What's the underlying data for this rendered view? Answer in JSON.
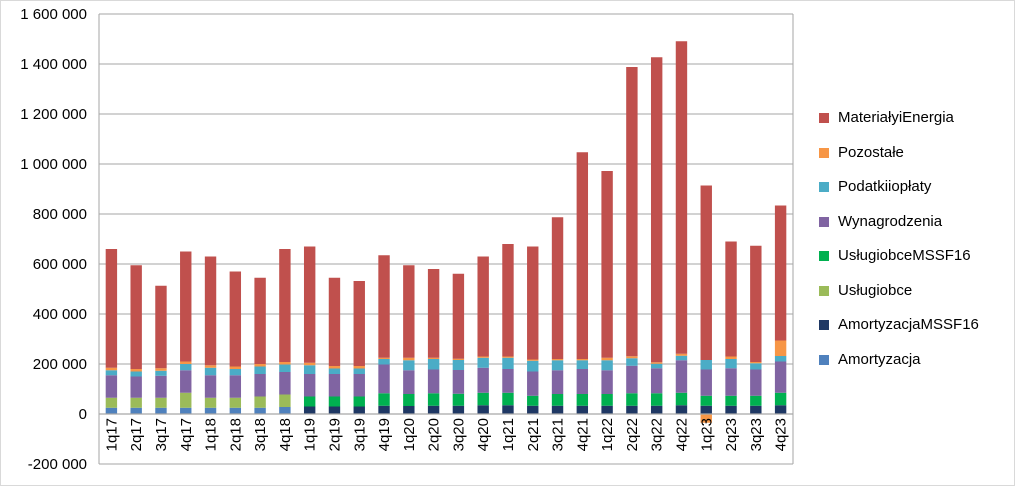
{
  "chart_data": {
    "type": "bar",
    "stacked": true,
    "categories": [
      "1q17",
      "2q17",
      "3q17",
      "4q17",
      "1q18",
      "2q18",
      "3q18",
      "4q18",
      "1q19",
      "2q19",
      "3q19",
      "4q19",
      "1q20",
      "2q20",
      "3q20",
      "4q20",
      "1q21",
      "2q21",
      "3q21",
      "4q21",
      "1q22",
      "2q22",
      "3q22",
      "4q22",
      "1q23",
      "2q23",
      "3q23",
      "4q23"
    ],
    "ylim": [
      -200000,
      1600000
    ],
    "yticks": [
      -200000,
      0,
      200000,
      400000,
      600000,
      800000,
      1000000,
      1200000,
      1400000,
      1600000
    ],
    "ytick_labels": [
      "-200 000",
      "0",
      "200 000",
      "400 000",
      "600 000",
      "800 000",
      "1 000 000",
      "1 200 000",
      "1 400 000",
      "1 600 000"
    ],
    "grid": true,
    "legend_position": "right",
    "series": [
      {
        "name": "Amortyzacja",
        "color": "#4F81BD",
        "values": [
          25000,
          25000,
          25000,
          25000,
          25000,
          25000,
          25000,
          28000,
          0,
          0,
          0,
          0,
          0,
          0,
          0,
          0,
          0,
          0,
          0,
          0,
          0,
          0,
          0,
          0,
          0,
          0,
          0,
          0
        ]
      },
      {
        "name": "AmortyzacjaMSSF16",
        "color": "#1F3864",
        "values": [
          0,
          0,
          0,
          0,
          0,
          0,
          0,
          0,
          30000,
          30000,
          30000,
          33000,
          32000,
          33000,
          33000,
          35000,
          35000,
          33000,
          33000,
          33000,
          33000,
          33000,
          33000,
          35000,
          33000,
          33000,
          33000,
          35000
        ]
      },
      {
        "name": "Usługiobce",
        "color": "#9BBB59",
        "values": [
          40000,
          40000,
          40000,
          60000,
          40000,
          40000,
          45000,
          50000,
          0,
          0,
          0,
          0,
          0,
          0,
          0,
          0,
          0,
          0,
          0,
          0,
          0,
          0,
          0,
          0,
          0,
          0,
          0,
          0
        ]
      },
      {
        "name": "UsługiobceMSSF16",
        "color": "#00B050",
        "values": [
          0,
          0,
          0,
          0,
          0,
          0,
          0,
          0,
          40000,
          40000,
          40000,
          50000,
          48000,
          50000,
          48000,
          50000,
          50000,
          40000,
          47000,
          47000,
          47000,
          50000,
          50000,
          50000,
          40000,
          40000,
          40000,
          50000
        ]
      },
      {
        "name": "Wynagrodzenia",
        "color": "#8064A2",
        "values": [
          90000,
          85000,
          88000,
          90000,
          90000,
          90000,
          90000,
          90000,
          90000,
          90000,
          90000,
          115000,
          95000,
          95000,
          95000,
          100000,
          95000,
          97000,
          95000,
          100000,
          95000,
          110000,
          100000,
          130000,
          105000,
          110000,
          105000,
          125000
        ]
      },
      {
        "name": "Podatkiiopłaty",
        "color": "#4BACC6",
        "values": [
          20000,
          20000,
          20000,
          25000,
          30000,
          25000,
          30000,
          30000,
          35000,
          22000,
          22000,
          22000,
          40000,
          42000,
          40000,
          40000,
          45000,
          43000,
          40000,
          35000,
          40000,
          30000,
          18000,
          18000,
          38000,
          37000,
          25000,
          22000
        ]
      },
      {
        "name": "Pozostałe",
        "color": "#F79646",
        "values": [
          10000,
          10000,
          10000,
          10000,
          10000,
          10000,
          10000,
          10000,
          10000,
          10000,
          10000,
          5000,
          10000,
          5000,
          5000,
          5000,
          5000,
          5000,
          5000,
          5000,
          10000,
          8000,
          6000,
          8000,
          -35000,
          10000,
          5000,
          62000
        ]
      },
      {
        "name": "MaterialyiEnergia",
        "color": "#C0504D",
        "values": [
          475000,
          415000,
          330000,
          440000,
          435000,
          380000,
          345000,
          452000,
          465000,
          353000,
          340000,
          410000,
          370000,
          355000,
          340000,
          400000,
          450000,
          452000,
          567000,
          827000,
          747000,
          1157000,
          1220000,
          1250000,
          698000,
          460000,
          465000,
          540000
        ]
      }
    ],
    "legend_order": [
      "MaterialyiEnergia",
      "Pozostałe",
      "Podatkiiopłaty",
      "Wynagrodzenia",
      "UsługiobceMSSF16",
      "Usługiobce",
      "AmortyzacjaMSSF16",
      "Amortyzacja"
    ],
    "legend_labels": {
      "MaterialyiEnergia": "MateriałyiEnergia",
      "Pozostałe": "Pozostałe",
      "Podatkiiopłaty": "Podatkiiopłaty",
      "Wynagrodzenia": "Wynagrodzenia",
      "UsługiobceMSSF16": "UsługiobceMSSF16",
      "Usługiobce": "Usługiobce",
      "AmortyzacjaMSSF16": "AmortyzacjaMSSF16",
      "Amortyzacja": "Amortyzacja"
    }
  }
}
